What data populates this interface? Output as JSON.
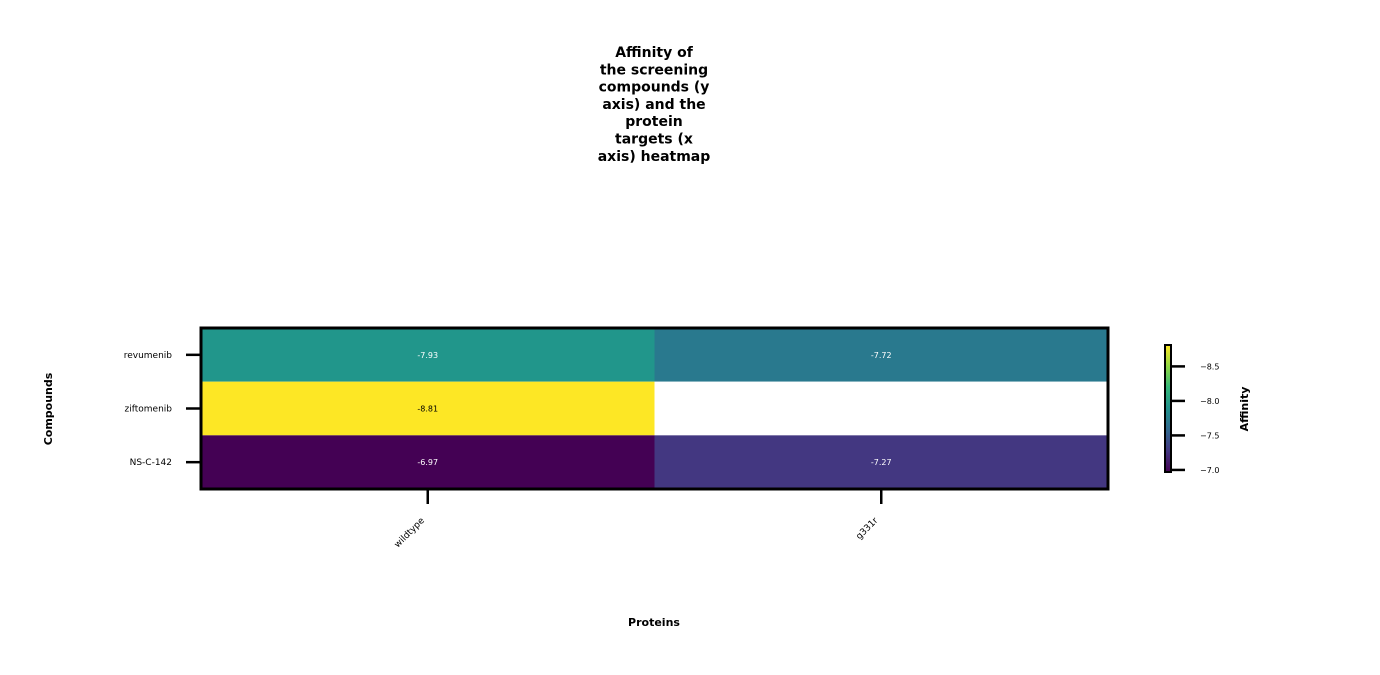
{
  "chart_data": {
    "type": "heatmap",
    "title_lines": [
      "Affinity of",
      "the screening",
      "compounds (y",
      "axis) and the",
      "protein",
      "targets (x",
      "axis) heatmap"
    ],
    "xlabel": "Proteins",
    "ylabel": "Compounds",
    "x_categories": [
      "wildtype",
      "g331r"
    ],
    "y_categories": [
      "revumenib",
      "ziftomenib",
      "NS-C-142"
    ],
    "values": [
      [
        -7.93,
        -7.72
      ],
      [
        -8.81,
        null
      ],
      [
        -6.97,
        -7.27
      ]
    ],
    "value_labels": [
      [
        "-7.93",
        "-7.72"
      ],
      [
        "-8.81",
        ""
      ],
      [
        "-6.97",
        "-7.27"
      ]
    ],
    "colormap": "viridis_r",
    "vmin": -8.81,
    "vmax": -6.97,
    "colorbar": {
      "label": "Affinity",
      "ticks": [
        -8.5,
        -8.0,
        -7.5,
        -7.0
      ],
      "tick_labels": [
        "−8.5",
        "−8.0",
        "−7.5",
        "−7.0"
      ]
    },
    "cell_colors": [
      [
        "#21968b",
        "#29798e"
      ],
      [
        "#fde725",
        "#ffffff"
      ],
      [
        "#440154",
        "#433781"
      ]
    ]
  }
}
